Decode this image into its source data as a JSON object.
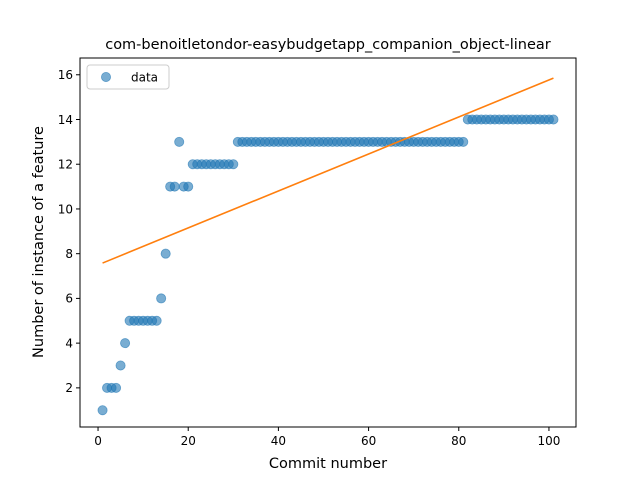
{
  "chart_data": {
    "type": "scatter",
    "title": "com-benoitletondor-easybudgetapp_companion_object-linear",
    "xlabel": "Commit number",
    "ylabel": "Number of instance of a feature",
    "xlim": [
      -4,
      106
    ],
    "ylim": [
      0.25,
      16.75
    ],
    "xticks": [
      0,
      20,
      40,
      60,
      80,
      100
    ],
    "yticks": [
      2,
      4,
      6,
      8,
      10,
      12,
      14,
      16
    ],
    "grid": false,
    "legend": {
      "position": "top-left",
      "entries": [
        "data"
      ]
    },
    "series": [
      {
        "name": "data",
        "kind": "scatter",
        "color": "#1f77b4",
        "x": [
          1,
          2,
          3,
          4,
          5,
          6,
          7,
          8,
          9,
          10,
          11,
          12,
          13,
          14,
          15,
          16,
          17,
          18,
          19,
          20,
          21,
          22,
          23,
          24,
          25,
          26,
          27,
          28,
          29,
          30,
          31,
          32,
          33,
          34,
          35,
          36,
          37,
          38,
          39,
          40,
          41,
          42,
          43,
          44,
          45,
          46,
          47,
          48,
          49,
          50,
          51,
          52,
          53,
          54,
          55,
          56,
          57,
          58,
          59,
          60,
          61,
          62,
          63,
          64,
          65,
          66,
          67,
          68,
          69,
          70,
          71,
          72,
          73,
          74,
          75,
          76,
          77,
          78,
          79,
          80,
          81,
          82,
          83,
          84,
          85,
          86,
          87,
          88,
          89,
          90,
          91,
          92,
          93,
          94,
          95,
          96,
          97,
          98,
          99,
          100,
          101
        ],
        "y": [
          1,
          2,
          2,
          2,
          3,
          4,
          5,
          5,
          5,
          5,
          5,
          5,
          5,
          6,
          8,
          11,
          11,
          13,
          11,
          11,
          12,
          12,
          12,
          12,
          12,
          12,
          12,
          12,
          12,
          12,
          13,
          13,
          13,
          13,
          13,
          13,
          13,
          13,
          13,
          13,
          13,
          13,
          13,
          13,
          13,
          13,
          13,
          13,
          13,
          13,
          13,
          13,
          13,
          13,
          13,
          13,
          13,
          13,
          13,
          13,
          13,
          13,
          13,
          13,
          13,
          13,
          13,
          13,
          13,
          13,
          13,
          13,
          13,
          13,
          13,
          13,
          13,
          13,
          13,
          13,
          13,
          14,
          14,
          14,
          14,
          14,
          14,
          14,
          14,
          14,
          14,
          14,
          14,
          14,
          14,
          14,
          14,
          14,
          14,
          14,
          14
        ]
      },
      {
        "name": "",
        "kind": "line",
        "color": "#ff7f0e",
        "x": [
          1,
          101
        ],
        "y": [
          7.58,
          15.85
        ]
      }
    ]
  }
}
